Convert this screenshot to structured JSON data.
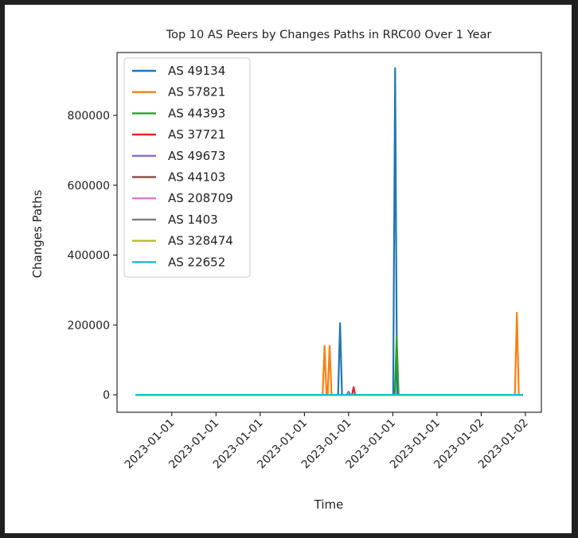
{
  "chart_data": {
    "type": "line",
    "title": "Top 10 AS Peers by Changes Paths in RRC00 Over 1 Year",
    "xlabel": "Time",
    "ylabel": "Changes Paths",
    "x_ticks": [
      "2023-01-01",
      "2023-01-01",
      "2023-01-01",
      "2023-01-01",
      "2023-01-01",
      "2023-01-01",
      "2023-01-01",
      "2023-01-02",
      "2023-01-02"
    ],
    "y_ticks": [
      0,
      200000,
      400000,
      600000,
      800000
    ],
    "y_tick_labels": [
      "0",
      "200000",
      "400000",
      "600000",
      "800000"
    ],
    "ylim": [
      -50000,
      980000
    ],
    "x_domain": [
      0,
      100
    ],
    "x_tick_positions": [
      9.4,
      20.8,
      32.2,
      43.6,
      55.0,
      66.4,
      77.8,
      89.2,
      100.6
    ],
    "grid": false,
    "legend_position": "top-left",
    "series": [
      {
        "name": "AS 49134",
        "color": "#1f77b4",
        "points": [
          [
            0,
            0
          ],
          [
            52.3,
            0
          ],
          [
            52.8,
            205000
          ],
          [
            53.3,
            0
          ],
          [
            66.5,
            0
          ],
          [
            67.0,
            935000
          ],
          [
            67.5,
            0
          ],
          [
            100,
            0
          ]
        ]
      },
      {
        "name": "AS 57821",
        "color": "#ff7f0e",
        "points": [
          [
            0,
            0
          ],
          [
            48.3,
            0
          ],
          [
            48.8,
            140000
          ],
          [
            49.3,
            0
          ],
          [
            49.6,
            0
          ],
          [
            50.1,
            140000
          ],
          [
            50.6,
            0
          ],
          [
            97.9,
            0
          ],
          [
            98.4,
            235000
          ],
          [
            98.9,
            0
          ],
          [
            100,
            0
          ]
        ]
      },
      {
        "name": "AS 44393",
        "color": "#2ca02c",
        "points": [
          [
            0,
            0
          ],
          [
            66.9,
            0
          ],
          [
            67.4,
            165000
          ],
          [
            67.9,
            0
          ],
          [
            100,
            0
          ]
        ]
      },
      {
        "name": "AS 37721",
        "color": "#d62728",
        "points": [
          [
            0,
            0
          ],
          [
            55.9,
            0
          ],
          [
            56.3,
            22000
          ],
          [
            56.7,
            0
          ],
          [
            100,
            0
          ]
        ]
      },
      {
        "name": "AS 49673",
        "color": "#9467bd",
        "points": [
          [
            0,
            0
          ],
          [
            54.5,
            0
          ],
          [
            55.0,
            9000
          ],
          [
            55.5,
            0
          ],
          [
            100,
            0
          ]
        ]
      },
      {
        "name": "AS 44103",
        "color": "#8c564b",
        "points": [
          [
            0,
            0
          ],
          [
            100,
            0
          ]
        ]
      },
      {
        "name": "AS 208709",
        "color": "#e377c2",
        "points": [
          [
            0,
            0
          ],
          [
            100,
            0
          ]
        ]
      },
      {
        "name": "AS 1403",
        "color": "#7f7f7f",
        "points": [
          [
            0,
            0
          ],
          [
            100,
            0
          ]
        ]
      },
      {
        "name": "AS 328474",
        "color": "#bcbd22",
        "points": [
          [
            0,
            0
          ],
          [
            100,
            0
          ]
        ]
      },
      {
        "name": "AS 22652",
        "color": "#17becf",
        "points": [
          [
            0,
            0
          ],
          [
            100,
            0
          ]
        ]
      }
    ]
  }
}
